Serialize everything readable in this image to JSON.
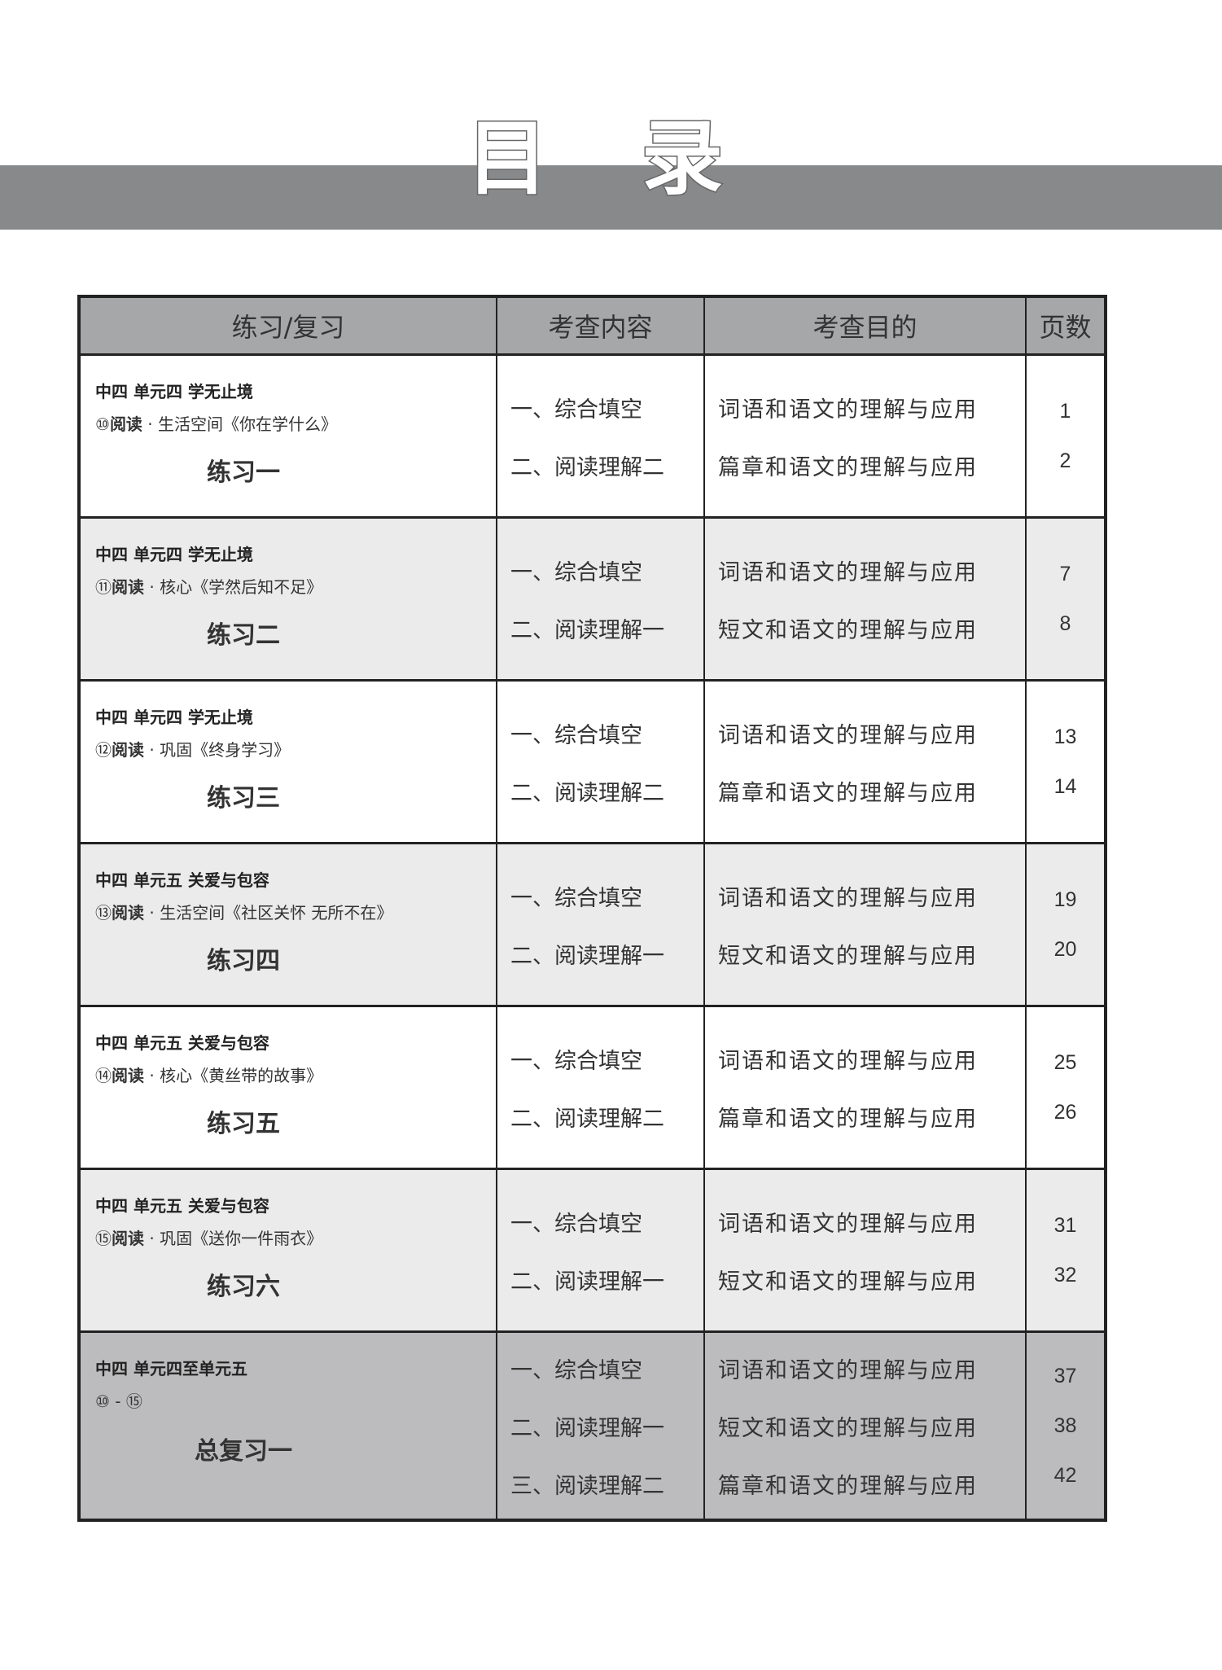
{
  "title": "目 录",
  "headers": [
    "练习/复习",
    "考查内容",
    "考查目的",
    "页数"
  ],
  "rows": [
    {
      "unit": "中四  单元四  学无止境",
      "num": "⑩",
      "read": "阅读",
      "lesson": " · 生活空间《你在学什么》",
      "name": "练习一",
      "contents": [
        "一、综合填空",
        "二、阅读理解二"
      ],
      "goals": [
        "词语和语文的理解与应用",
        "篇章和语文的理解与应用"
      ],
      "pages": [
        "1",
        "2"
      ]
    },
    {
      "unit": "中四  单元四  学无止境",
      "num": "⑪",
      "read": "阅读",
      "lesson": " · 核心《学然后知不足》",
      "name": "练习二",
      "contents": [
        "一、综合填空",
        "二、阅读理解一"
      ],
      "goals": [
        "词语和语文的理解与应用",
        "短文和语文的理解与应用"
      ],
      "pages": [
        "7",
        "8"
      ]
    },
    {
      "unit": "中四  单元四  学无止境",
      "num": "⑫",
      "read": "阅读",
      "lesson": " · 巩固《终身学习》",
      "name": "练习三",
      "contents": [
        "一、综合填空",
        "二、阅读理解二"
      ],
      "goals": [
        "词语和语文的理解与应用",
        "篇章和语文的理解与应用"
      ],
      "pages": [
        "13",
        "14"
      ]
    },
    {
      "unit": "中四  单元五  关爱与包容",
      "num": "⑬",
      "read": "阅读",
      "lesson": " · 生活空间《社区关怀  无所不在》",
      "name": "练习四",
      "contents": [
        "一、综合填空",
        "二、阅读理解一"
      ],
      "goals": [
        "词语和语文的理解与应用",
        "短文和语文的理解与应用"
      ],
      "pages": [
        "19",
        "20"
      ]
    },
    {
      "unit": "中四  单元五  关爱与包容",
      "num": "⑭",
      "read": "阅读",
      "lesson": " · 核心《黄丝带的故事》",
      "name": "练习五",
      "contents": [
        "一、综合填空",
        "二、阅读理解二"
      ],
      "goals": [
        "词语和语文的理解与应用",
        "篇章和语文的理解与应用"
      ],
      "pages": [
        "25",
        "26"
      ]
    },
    {
      "unit": "中四  单元五  关爱与包容",
      "num": "⑮",
      "read": "阅读",
      "lesson": " · 巩固《送你一件雨衣》",
      "name": "练习六",
      "contents": [
        "一、综合填空",
        "二、阅读理解一"
      ],
      "goals": [
        "词语和语文的理解与应用",
        "短文和语文的理解与应用"
      ],
      "pages": [
        "31",
        "32"
      ]
    },
    {
      "unit": "中四  单元四至单元五",
      "num": "⑩ - ⑮",
      "read": "",
      "lesson": "",
      "name": "总复习一",
      "contents": [
        "一、综合填空",
        "二、阅读理解一",
        "三、阅读理解二"
      ],
      "goals": [
        "词语和语文的理解与应用",
        "短文和语文的理解与应用",
        "篇章和语文的理解与应用"
      ],
      "pages": [
        "37",
        "38",
        "42"
      ]
    }
  ]
}
